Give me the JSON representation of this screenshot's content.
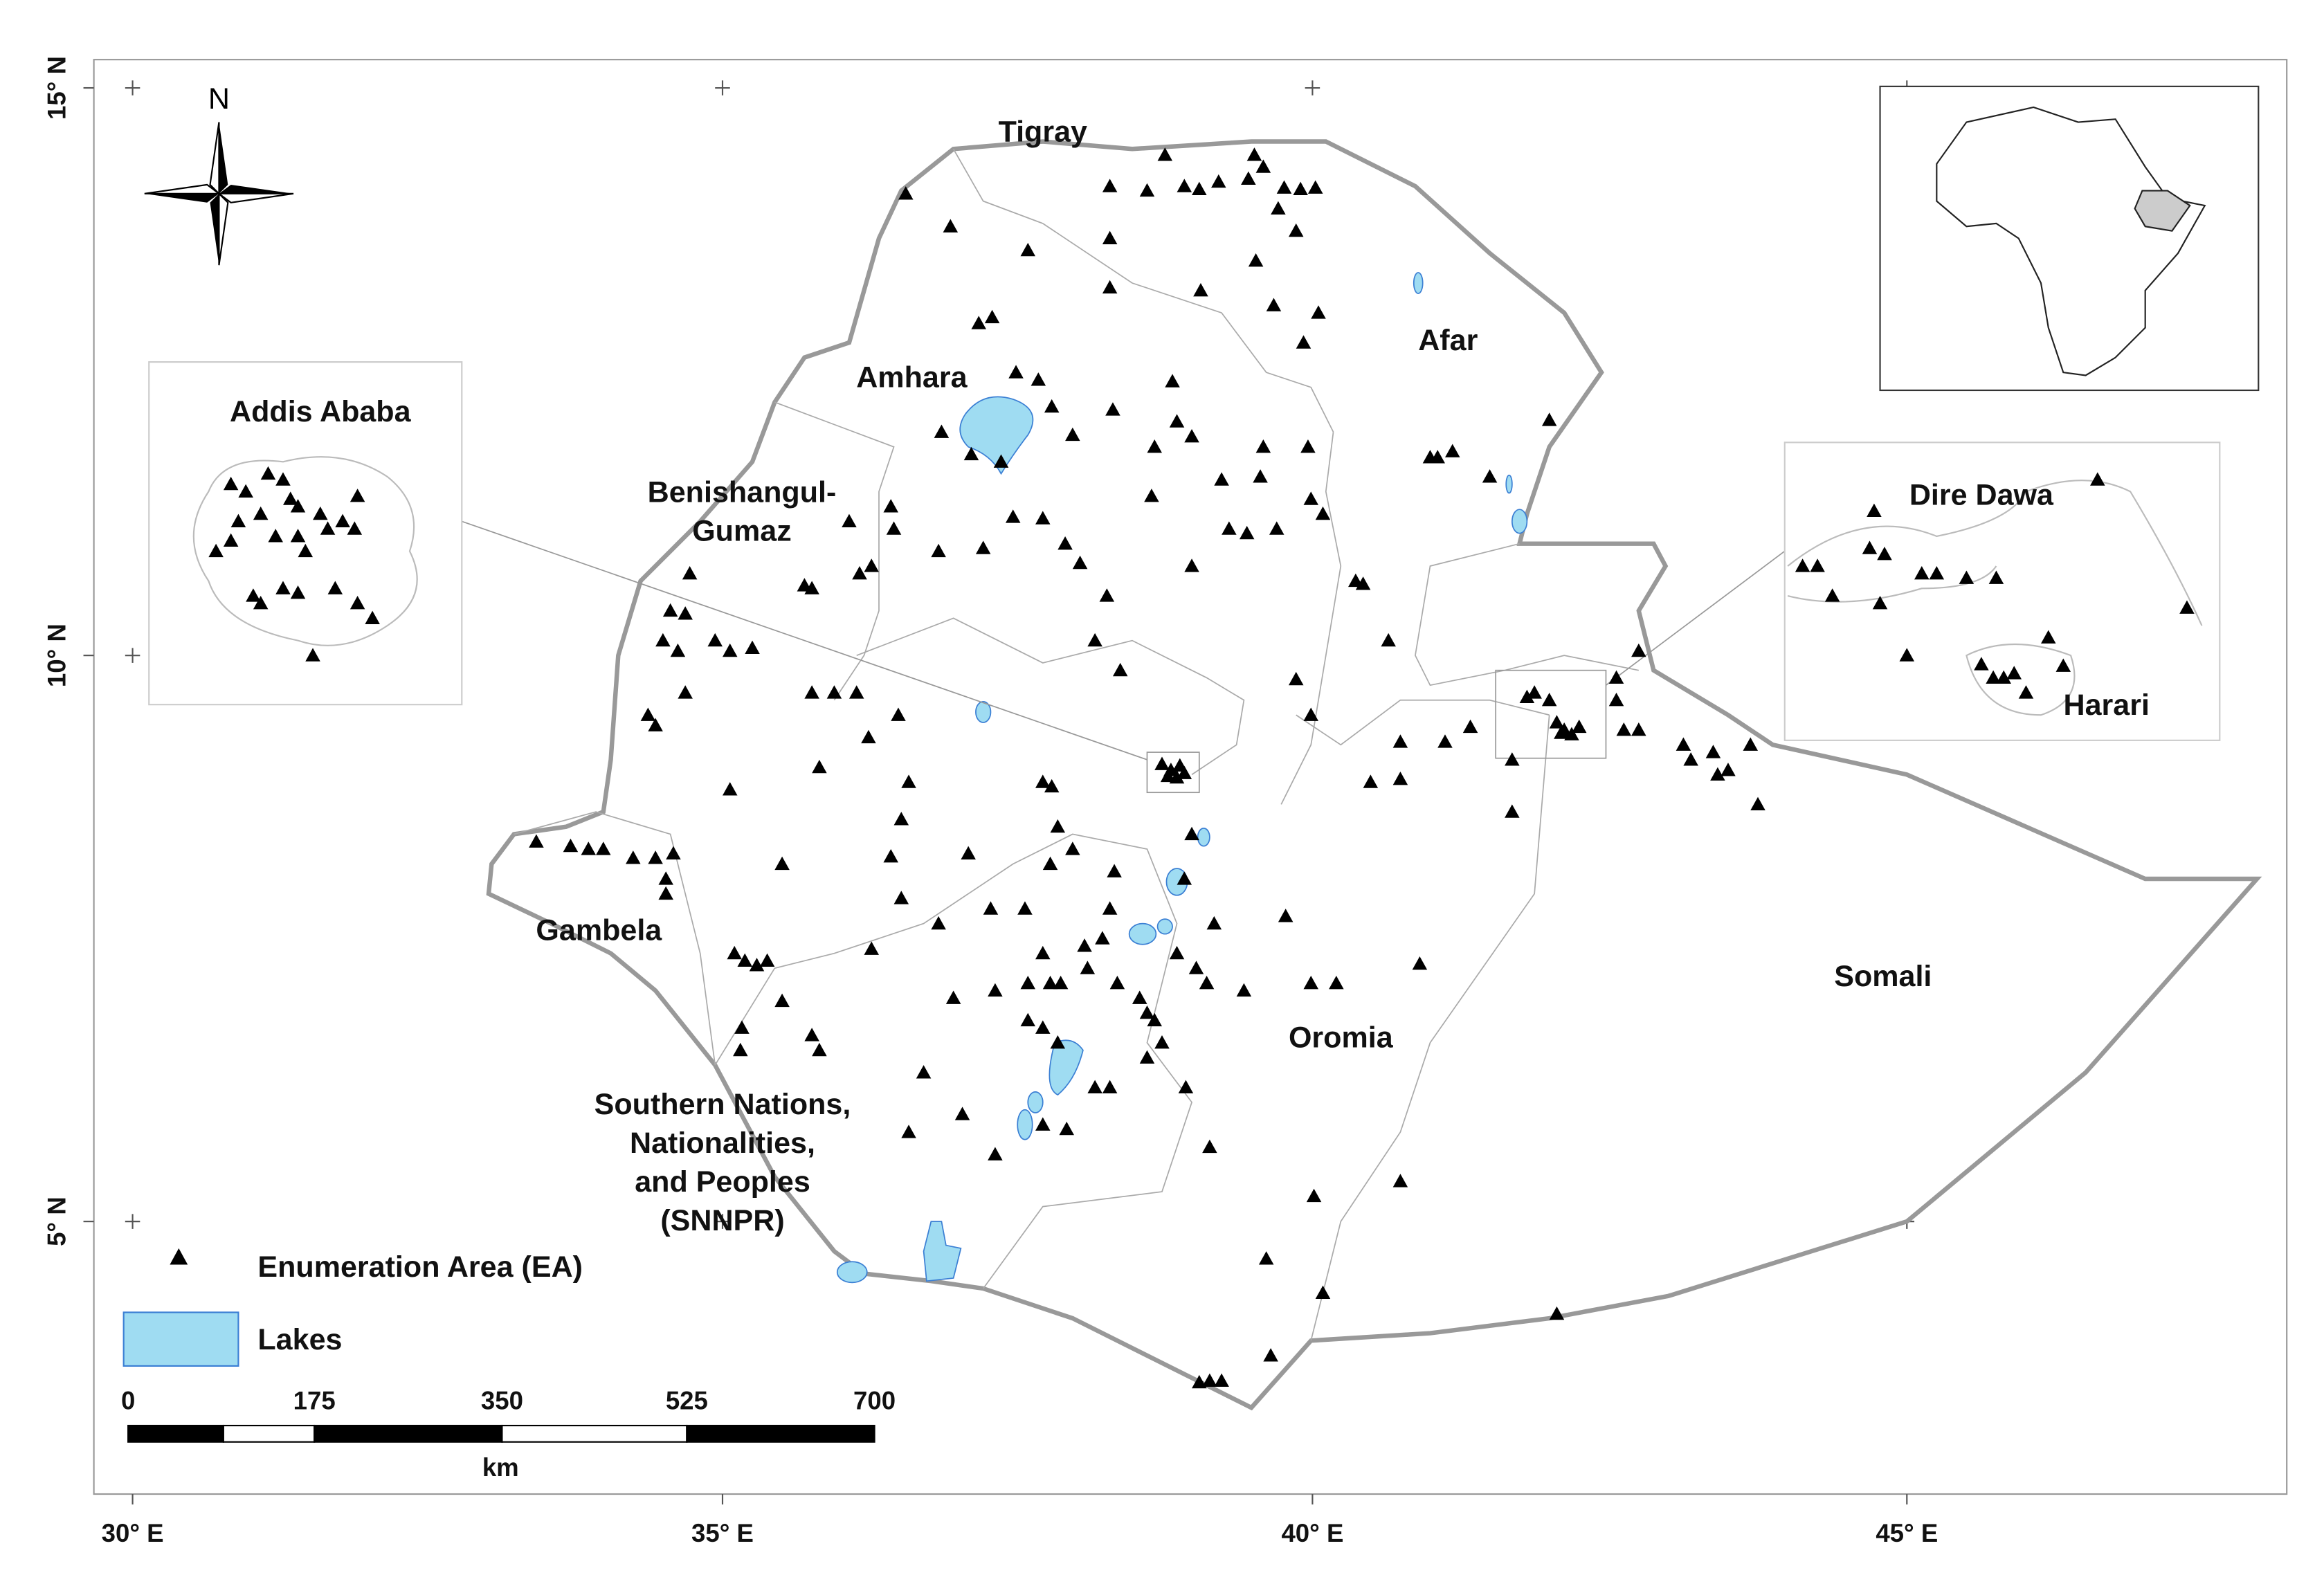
{
  "map": {
    "graticule": {
      "longitude_labels": [
        "30° E",
        "35° E",
        "40° E",
        "45° E"
      ],
      "latitude_labels": [
        "15° N",
        "10° N",
        "5° N"
      ]
    },
    "compass": "N",
    "regions": [
      {
        "lines": [
          "Tigray"
        ]
      },
      {
        "lines": [
          "Afar"
        ]
      },
      {
        "lines": [
          "Amhara"
        ]
      },
      {
        "lines": [
          "Benishangul-",
          "Gumaz"
        ]
      },
      {
        "lines": [
          "Gambela"
        ]
      },
      {
        "lines": [
          "Oromia"
        ]
      },
      {
        "lines": [
          "Somali"
        ]
      },
      {
        "lines": [
          "Southern Nations,",
          "Nationalities,",
          "and Peoples",
          "(SNNPR)"
        ]
      }
    ],
    "insets": {
      "addis": "Addis Ababa",
      "dire_dawa": "Dire Dawa",
      "harari": "Harari"
    },
    "legend": {
      "ea": "Enumeration Area (EA)",
      "lakes": "Lakes"
    },
    "scale_bar": {
      "labels": [
        "0",
        "175",
        "350",
        "525",
        "700"
      ],
      "unit": "km"
    }
  }
}
